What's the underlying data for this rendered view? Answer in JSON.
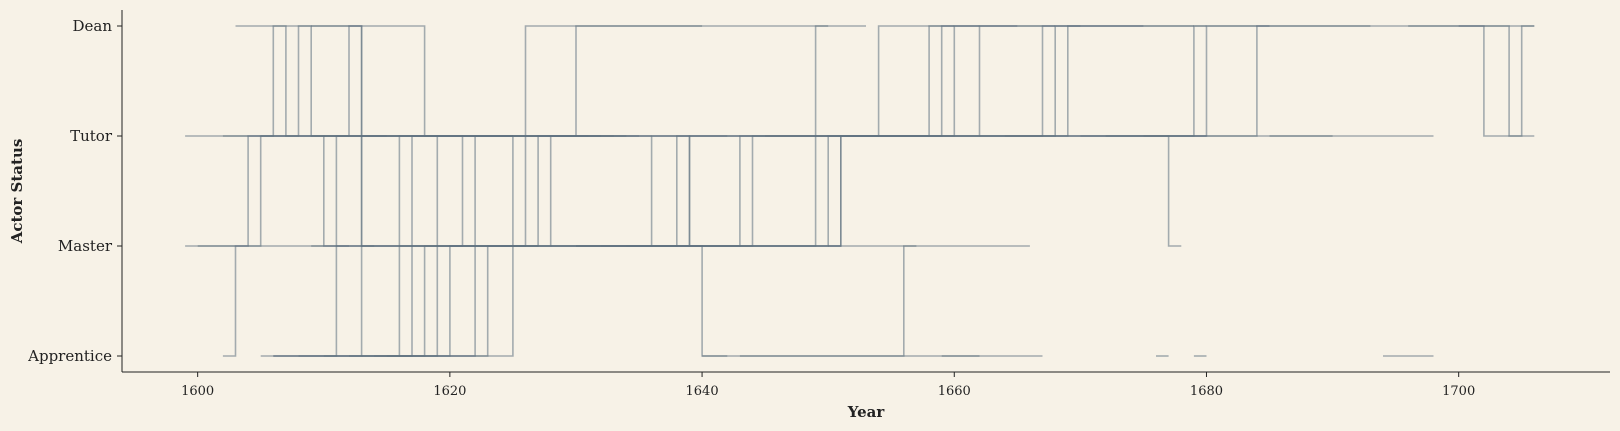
{
  "chart_data": {
    "type": "line",
    "title": "",
    "xlabel": "Year",
    "ylabel": "Actor Status",
    "xlim": [
      1594,
      1712
    ],
    "x_ticks": [
      1600,
      1620,
      1640,
      1660,
      1680,
      1700
    ],
    "x_tick_labels": [
      "1600",
      "1620",
      "1640",
      "1660",
      "1680",
      "1700"
    ],
    "y_categories": [
      "Apprentice",
      "Master",
      "Tutor",
      "Dean"
    ],
    "grid": false,
    "legend": "none",
    "series": [
      {
        "x": [
          1599,
          1606,
          1606,
          1609,
          1609,
          1614
        ],
        "y": [
          "Tutor",
          "Tutor",
          "Dean",
          "Dean",
          "Tutor",
          "Tutor"
        ]
      },
      {
        "x": [
          1603,
          1607,
          1607,
          1610,
          1610,
          1612
        ],
        "y": [
          "Dean",
          "Dean",
          "Tutor",
          "Tutor",
          "Master",
          "Master"
        ]
      },
      {
        "x": [
          1602,
          1608,
          1608,
          1613,
          1613,
          1625
        ],
        "y": [
          "Tutor",
          "Tutor",
          "Dean",
          "Dean",
          "Tutor",
          "Tutor"
        ]
      },
      {
        "x": [
          1605,
          1612,
          1612,
          1618,
          1618,
          1625
        ],
        "y": [
          "Tutor",
          "Tutor",
          "Dean",
          "Dean",
          "Tutor",
          "Tutor"
        ]
      },
      {
        "x": [
          1609,
          1613,
          1613,
          1625
        ],
        "y": [
          "Dean",
          "Dean",
          "Tutor",
          "Tutor"
        ]
      },
      {
        "x": [
          1612,
          1626,
          1626,
          1640
        ],
        "y": [
          "Tutor",
          "Tutor",
          "Dean",
          "Dean"
        ]
      },
      {
        "x": [
          1614,
          1630,
          1630,
          1650
        ],
        "y": [
          "Tutor",
          "Tutor",
          "Dean",
          "Dean"
        ]
      },
      {
        "x": [
          1630,
          1649,
          1649,
          1653
        ],
        "y": [
          "Tutor",
          "Tutor",
          "Dean",
          "Dean"
        ]
      },
      {
        "x": [
          1640,
          1654,
          1654,
          1660
        ],
        "y": [
          "Tutor",
          "Tutor",
          "Dean",
          "Dean"
        ]
      },
      {
        "x": [
          1645,
          1658,
          1658,
          1662
        ],
        "y": [
          "Tutor",
          "Tutor",
          "Dean",
          "Dean"
        ]
      },
      {
        "x": [
          1650,
          1659,
          1659,
          1665
        ],
        "y": [
          "Tutor",
          "Tutor",
          "Dean",
          "Dean"
        ]
      },
      {
        "x": [
          1652,
          1660,
          1660,
          1668
        ],
        "y": [
          "Tutor",
          "Tutor",
          "Dean",
          "Dean"
        ]
      },
      {
        "x": [
          1655,
          1662,
          1662,
          1670
        ],
        "y": [
          "Tutor",
          "Tutor",
          "Dean",
          "Dean"
        ]
      },
      {
        "x": [
          1660,
          1667,
          1667,
          1675
        ],
        "y": [
          "Tutor",
          "Tutor",
          "Dean",
          "Dean"
        ]
      },
      {
        "x": [
          1662,
          1668,
          1668,
          1679
        ],
        "y": [
          "Tutor",
          "Tutor",
          "Dean",
          "Dean"
        ]
      },
      {
        "x": [
          1664,
          1669,
          1669,
          1680
        ],
        "y": [
          "Tutor",
          "Tutor",
          "Dean",
          "Dean"
        ]
      },
      {
        "x": [
          1670,
          1679,
          1679,
          1685
        ],
        "y": [
          "Tutor",
          "Tutor",
          "Dean",
          "Dean"
        ]
      },
      {
        "x": [
          1672,
          1680,
          1680,
          1693
        ],
        "y": [
          "Tutor",
          "Tutor",
          "Dean",
          "Dean"
        ]
      },
      {
        "x": [
          1675,
          1684,
          1684,
          1706
        ],
        "y": [
          "Tutor",
          "Tutor",
          "Dean",
          "Dean"
        ]
      },
      {
        "x": [
          1685,
          1698
        ],
        "y": [
          "Tutor",
          "Tutor"
        ]
      },
      {
        "x": [
          1696,
          1702,
          1702,
          1706
        ],
        "y": [
          "Dean",
          "Dean",
          "Tutor",
          "Tutor"
        ]
      },
      {
        "x": [
          1700,
          1704,
          1704,
          1705,
          1705,
          1706
        ],
        "y": [
          "Dean",
          "Dean",
          "Tutor",
          "Tutor",
          "Dean",
          "Dean"
        ]
      },
      {
        "x": [
          1599,
          1604,
          1604,
          1612
        ],
        "y": [
          "Master",
          "Master",
          "Tutor",
          "Tutor"
        ]
      },
      {
        "x": [
          1600,
          1605,
          1605,
          1613
        ],
        "y": [
          "Master",
          "Master",
          "Tutor",
          "Tutor"
        ]
      },
      {
        "x": [
          1602,
          1603,
          1603,
          1614
        ],
        "y": [
          "Apprentice",
          "Apprentice",
          "Master",
          "Master"
        ]
      },
      {
        "x": [
          1605,
          1611,
          1611,
          1630
        ],
        "y": [
          "Apprentice",
          "Apprentice",
          "Tutor",
          "Tutor"
        ]
      },
      {
        "x": [
          1606,
          1613,
          1613,
          1615
        ],
        "y": [
          "Apprentice",
          "Apprentice",
          "Tutor",
          "Tutor"
        ]
      },
      {
        "x": [
          1606,
          1616,
          1616,
          1619
        ],
        "y": [
          "Apprentice",
          "Apprentice",
          "Tutor",
          "Tutor"
        ]
      },
      {
        "x": [
          1608,
          1617,
          1617,
          1620
        ],
        "y": [
          "Apprentice",
          "Apprentice",
          "Tutor",
          "Tutor"
        ]
      },
      {
        "x": [
          1610,
          1618,
          1618,
          1622
        ],
        "y": [
          "Apprentice",
          "Apprentice",
          "Master",
          "Master"
        ]
      },
      {
        "x": [
          1612,
          1619,
          1619,
          1621
        ],
        "y": [
          "Apprentice",
          "Apprentice",
          "Tutor",
          "Tutor"
        ]
      },
      {
        "x": [
          1613,
          1620,
          1620,
          1626
        ],
        "y": [
          "Apprentice",
          "Apprentice",
          "Master",
          "Master"
        ]
      },
      {
        "x": [
          1614,
          1622,
          1622,
          1632
        ],
        "y": [
          "Apprentice",
          "Apprentice",
          "Tutor",
          "Tutor"
        ]
      },
      {
        "x": [
          1615,
          1623,
          1623,
          1627
        ],
        "y": [
          "Apprentice",
          "Apprentice",
          "Master",
          "Master"
        ]
      },
      {
        "x": [
          1616,
          1625,
          1625,
          1651
        ],
        "y": [
          "Apprentice",
          "Apprentice",
          "Master",
          "Master"
        ]
      },
      {
        "x": [
          1609,
          1621,
          1621,
          1631
        ],
        "y": [
          "Master",
          "Master",
          "Tutor",
          "Tutor"
        ]
      },
      {
        "x": [
          1611,
          1625,
          1625,
          1633
        ],
        "y": [
          "Master",
          "Master",
          "Tutor",
          "Tutor"
        ]
      },
      {
        "x": [
          1613,
          1626,
          1626,
          1634
        ],
        "y": [
          "Master",
          "Master",
          "Tutor",
          "Tutor"
        ]
      },
      {
        "x": [
          1614,
          1627,
          1627,
          1635
        ],
        "y": [
          "Master",
          "Master",
          "Tutor",
          "Tutor"
        ]
      },
      {
        "x": [
          1616,
          1628,
          1628,
          1636
        ],
        "y": [
          "Master",
          "Master",
          "Tutor",
          "Tutor"
        ]
      },
      {
        "x": [
          1620,
          1636,
          1636,
          1640
        ],
        "y": [
          "Master",
          "Master",
          "Tutor",
          "Tutor"
        ]
      },
      {
        "x": [
          1622,
          1638,
          1638,
          1642
        ],
        "y": [
          "Master",
          "Master",
          "Tutor",
          "Tutor"
        ]
      },
      {
        "x": [
          1624,
          1639,
          1639,
          1650
        ],
        "y": [
          "Master",
          "Master",
          "Tutor",
          "Tutor"
        ]
      },
      {
        "x": [
          1628,
          1643,
          1643,
          1655
        ],
        "y": [
          "Master",
          "Master",
          "Tutor",
          "Tutor"
        ]
      },
      {
        "x": [
          1630,
          1644,
          1644,
          1660
        ],
        "y": [
          "Master",
          "Master",
          "Tutor",
          "Tutor"
        ]
      },
      {
        "x": [
          1632,
          1649,
          1649,
          1670
        ],
        "y": [
          "Master",
          "Master",
          "Tutor",
          "Tutor"
        ]
      },
      {
        "x": [
          1634,
          1650,
          1650,
          1680
        ],
        "y": [
          "Master",
          "Master",
          "Tutor",
          "Tutor"
        ]
      },
      {
        "x": [
          1636,
          1651,
          1651,
          1690
        ],
        "y": [
          "Master",
          "Master",
          "Tutor",
          "Tutor"
        ]
      },
      {
        "x": [
          1609,
          1613,
          1613,
          1614
        ],
        "y": [
          "Tutor",
          "Tutor",
          "Master",
          "Master"
        ]
      },
      {
        "x": [
          1610,
          1639,
          1639,
          1651,
          1651,
          1652
        ],
        "y": [
          "Tutor",
          "Tutor",
          "Master",
          "Master",
          "Tutor",
          "Tutor"
        ]
      },
      {
        "x": [
          1630,
          1640,
          1640,
          1642
        ],
        "y": [
          "Master",
          "Master",
          "Apprentice",
          "Apprentice"
        ]
      },
      {
        "x": [
          1640,
          1656,
          1656,
          1657
        ],
        "y": [
          "Apprentice",
          "Apprentice",
          "Master",
          "Master"
        ]
      },
      {
        "x": [
          1650,
          1666
        ],
        "y": [
          "Master",
          "Master"
        ]
      },
      {
        "x": [
          1643,
          1662
        ],
        "y": [
          "Apprentice",
          "Apprentice"
        ]
      },
      {
        "x": [
          1659,
          1667
        ],
        "y": [
          "Apprentice",
          "Apprentice"
        ]
      },
      {
        "x": [
          1670,
          1677,
          1677,
          1678
        ],
        "y": [
          "Tutor",
          "Tutor",
          "Master",
          "Master"
        ]
      },
      {
        "x": [
          1676,
          1677
        ],
        "y": [
          "Apprentice",
          "Apprentice"
        ]
      },
      {
        "x": [
          1679,
          1680
        ],
        "y": [
          "Apprentice",
          "Apprentice"
        ]
      },
      {
        "x": [
          1694,
          1698
        ],
        "y": [
          "Apprentice",
          "Apprentice"
        ]
      }
    ]
  },
  "colors": {
    "line": "#5f7180",
    "dark_line": "#2c3e50",
    "background": "#f7f2e7",
    "text": "#222222"
  }
}
